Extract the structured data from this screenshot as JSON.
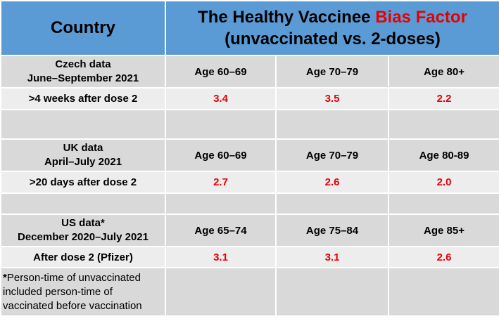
{
  "header": {
    "country": "Country",
    "title_black": "The Healthy Vaccinee ",
    "title_red": "Bias Factor",
    "subtitle": "(unvaccinated vs. 2-doses)"
  },
  "sections": [
    {
      "source_line1": "Czech data",
      "source_line2": "June–September 2021",
      "ages": [
        "Age 60–69",
        "Age 70–79",
        "Age 80+"
      ],
      "row_label": ">4 weeks after dose 2",
      "values": [
        "3.4",
        "3.5",
        "2.2"
      ]
    },
    {
      "source_line1": "UK data",
      "source_line2": "April–July 2021",
      "ages": [
        "Age 60–69",
        "Age 70–79",
        "Age 80-89"
      ],
      "row_label": ">20 days after dose 2",
      "values": [
        "2.7",
        "2.6",
        "2.0"
      ]
    },
    {
      "source_line1": "US data*",
      "source_line2": "December 2020–July 2021",
      "ages": [
        "Age 65–74",
        "Age 75–84",
        "Age 85+"
      ],
      "row_label": "After dose 2 (Pfizer)",
      "values": [
        "3.1",
        "3.1",
        "2.6"
      ]
    }
  ],
  "footnote": {
    "star": "*",
    "line1": "Person-time of unvaccinated",
    "line2": "included person-time of",
    "line3": "vaccinated before vaccination"
  },
  "colors": {
    "header_bg": "#5b9bd5",
    "cell_bg": "#d9d9d9",
    "value_row_bg": "#ededed",
    "highlight": "#e60000"
  }
}
